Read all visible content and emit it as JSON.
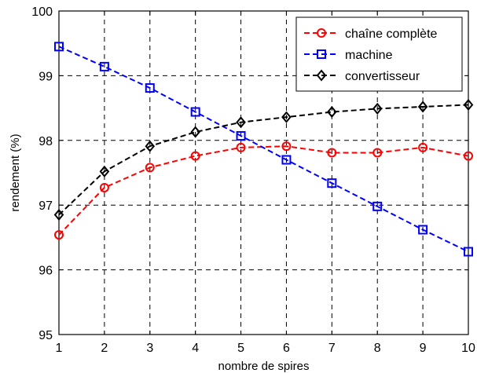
{
  "chart_data": {
    "type": "line",
    "title": "",
    "xlabel": "nombre de spires",
    "ylabel": "rendement (%)",
    "x": [
      1,
      2,
      3,
      4,
      5,
      6,
      7,
      8,
      9,
      10
    ],
    "xlim": [
      1,
      10
    ],
    "ylim": [
      95,
      100
    ],
    "xticks": [
      "1",
      "2",
      "3",
      "4",
      "5",
      "6",
      "7",
      "8",
      "9",
      "10"
    ],
    "yticks": [
      "95",
      "96",
      "97",
      "98",
      "99",
      "100"
    ],
    "grid": true,
    "legend_position": "top-right",
    "series": [
      {
        "name": "chaîne complète",
        "color": "#ff0000",
        "marker": "circle",
        "line_style": "dashed",
        "values": [
          96.54,
          97.27,
          97.58,
          97.76,
          97.89,
          97.91,
          97.81,
          97.81,
          97.89,
          97.76
        ]
      },
      {
        "name": "machine",
        "color": "#0000ff",
        "marker": "square",
        "line_style": "dashed",
        "values": [
          99.45,
          99.14,
          98.81,
          98.44,
          98.07,
          97.7,
          97.34,
          96.98,
          96.62,
          96.28
        ]
      },
      {
        "name": "convertisseur",
        "color": "#000000",
        "marker": "diamond",
        "line_style": "dashed",
        "values": [
          96.85,
          97.52,
          97.91,
          98.13,
          98.28,
          98.36,
          98.44,
          98.49,
          98.52,
          98.55
        ]
      }
    ]
  }
}
